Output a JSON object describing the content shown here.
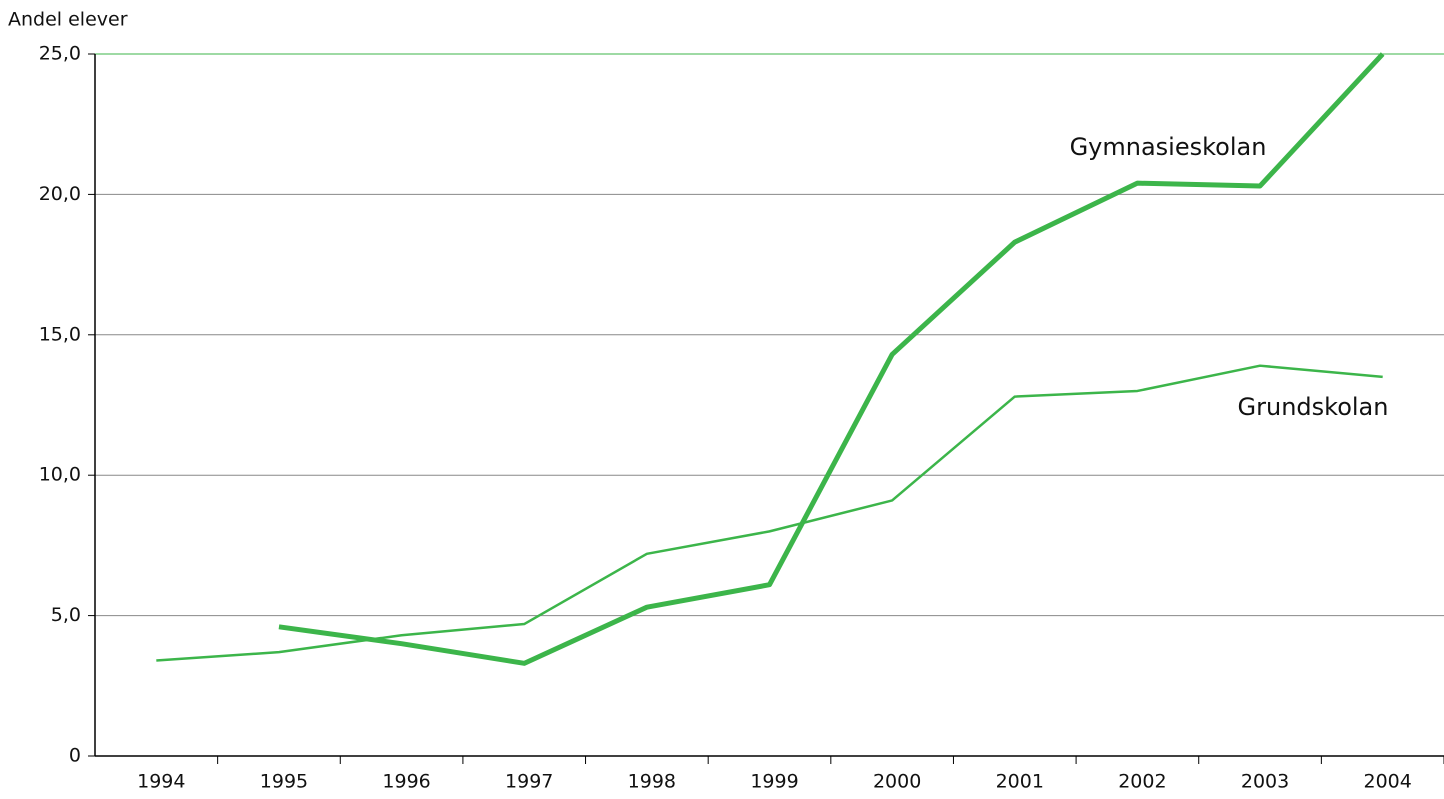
{
  "chart_data": {
    "type": "line",
    "title": "Andel elever",
    "categories": [
      "1994",
      "1995",
      "1996",
      "1997",
      "1998",
      "1999",
      "2000",
      "2001",
      "2002",
      "2003",
      "2004"
    ],
    "series": [
      {
        "name": "Gymnasieskolan",
        "color": "#3cb54a",
        "values": [
          null,
          4.6,
          4.0,
          3.3,
          5.3,
          6.1,
          14.3,
          18.3,
          20.4,
          20.3,
          25.0
        ]
      },
      {
        "name": "Grundskolan",
        "color": "#3cb54a",
        "values": [
          3.4,
          3.7,
          4.3,
          4.7,
          7.2,
          8.0,
          9.1,
          12.8,
          13.0,
          13.9,
          13.5
        ]
      }
    ],
    "ylim": [
      0,
      25
    ],
    "yticks": [
      0,
      {
        "value": 5,
        "label": "5,0"
      },
      {
        "value": 10,
        "label": "10,0"
      },
      {
        "value": 15,
        "label": "15,0"
      },
      {
        "value": 20,
        "label": "20,0"
      },
      {
        "value": 25,
        "label": "25,0"
      }
    ],
    "grid": true
  }
}
